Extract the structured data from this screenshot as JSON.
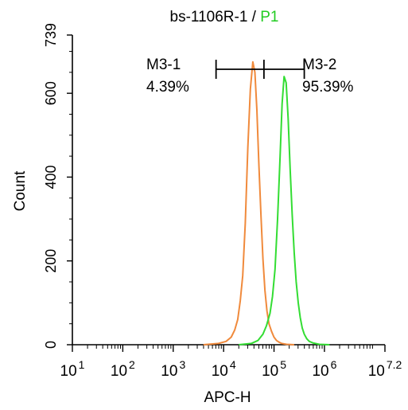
{
  "chart_data": {
    "type": "line",
    "title": {
      "sample": "bs-1106R-1",
      "separator": " / ",
      "gate": "P1"
    },
    "xlabel": "APC-H",
    "ylabel": "Count",
    "x_scale": "log10",
    "xlim_log10": [
      1,
      7.2
    ],
    "ylim": [
      0,
      739
    ],
    "x_ticks": [
      {
        "base": "10",
        "exp": "1",
        "value_log10": 1
      },
      {
        "base": "10",
        "exp": "2",
        "value_log10": 2
      },
      {
        "base": "10",
        "exp": "3",
        "value_log10": 3
      },
      {
        "base": "10",
        "exp": "4",
        "value_log10": 4
      },
      {
        "base": "10",
        "exp": "5",
        "value_log10": 5
      },
      {
        "base": "10",
        "exp": "6",
        "value_log10": 6
      },
      {
        "base": "10",
        "exp": "7.2",
        "value_log10": 7.2
      }
    ],
    "y_ticks": [
      {
        "label": "0",
        "value": 0
      },
      {
        "label": "200",
        "value": 200
      },
      {
        "label": "400",
        "value": 400
      },
      {
        "label": "600",
        "value": 600
      },
      {
        "label": "739",
        "value": 739
      }
    ],
    "gates": [
      {
        "name": "M3-1",
        "percent": "4.39%"
      },
      {
        "name": "M3-2",
        "percent": "95.39%"
      }
    ],
    "gate_marker_log10": {
      "start": 3.85,
      "divider": 4.8,
      "end": 5.6
    },
    "series": [
      {
        "color": "#f08a3c",
        "x_log10": [
          3.6,
          3.9,
          4.05,
          4.15,
          4.22,
          4.28,
          4.33,
          4.38,
          4.43,
          4.48,
          4.53,
          4.58,
          4.62,
          4.66,
          4.7,
          4.74,
          4.78,
          4.82,
          4.86,
          4.9,
          4.95,
          5.0,
          5.05,
          5.1,
          5.15,
          5.25,
          5.4
        ],
        "y": [
          0,
          3,
          8,
          18,
          35,
          60,
          105,
          165,
          290,
          470,
          610,
          675,
          650,
          560,
          430,
          310,
          205,
          130,
          80,
          50,
          32,
          18,
          10,
          6,
          3,
          1,
          0
        ]
      },
      {
        "color": "#33dd33",
        "x_log10": [
          4.3,
          4.55,
          4.68,
          4.78,
          4.85,
          4.92,
          4.97,
          5.02,
          5.07,
          5.12,
          5.16,
          5.2,
          5.24,
          5.28,
          5.32,
          5.36,
          5.4,
          5.44,
          5.48,
          5.52,
          5.56,
          5.6,
          5.65,
          5.7,
          5.78,
          5.9,
          6.1
        ],
        "y": [
          0,
          3,
          10,
          25,
          45,
          75,
          115,
          180,
          300,
          450,
          575,
          640,
          625,
          540,
          420,
          310,
          220,
          150,
          100,
          65,
          40,
          25,
          14,
          8,
          4,
          1,
          0
        ]
      }
    ]
  }
}
